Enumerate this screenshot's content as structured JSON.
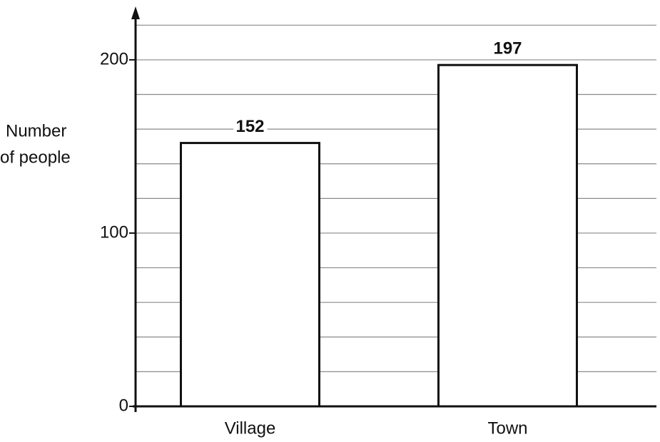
{
  "chart_data": {
    "type": "bar",
    "ylabel": [
      "Number",
      "of people"
    ],
    "categories": [
      "Village",
      "Town"
    ],
    "values": [
      152,
      197
    ],
    "color": "#ffffff",
    "ylim": [
      0,
      230
    ],
    "yticks": [
      0,
      100,
      200
    ],
    "minor_yticks": [
      20,
      40,
      60,
      80,
      120,
      140,
      160,
      180,
      220
    ],
    "grid": true
  }
}
